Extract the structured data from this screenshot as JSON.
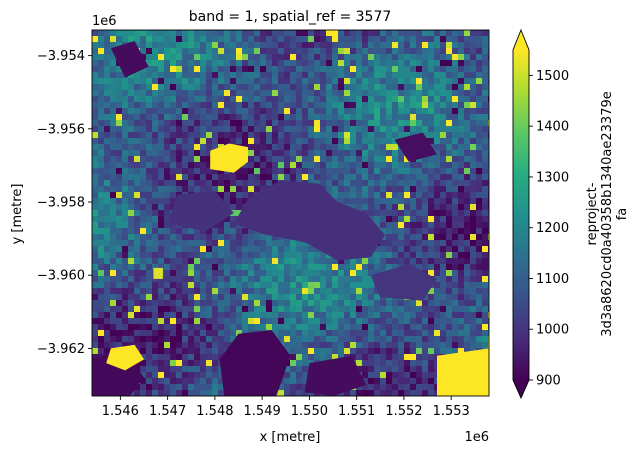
{
  "chart_data": {
    "type": "heatmap",
    "title": "band = 1, spatial_ref = 3577",
    "xlabel": "x [metre]",
    "ylabel": "y [metre]",
    "x_offset_label": "1e6",
    "y_offset_label": "1e6",
    "xlim": [
      1.5454,
      1.5538
    ],
    "ylim": [
      -3.9633,
      -3.9533
    ],
    "x_ticks": [
      1.546,
      1.547,
      1.548,
      1.549,
      1.55,
      1.551,
      1.552,
      1.553
    ],
    "y_ticks": [
      -3.954,
      -3.956,
      -3.958,
      -3.96,
      -3.962
    ],
    "x_tick_labels": [
      "1.546",
      "1.547",
      "1.548",
      "1.549",
      "1.550",
      "1.551",
      "1.552",
      "1.553"
    ],
    "y_tick_labels": [
      "−3.954",
      "−3.956",
      "−3.958",
      "−3.960",
      "−3.962"
    ],
    "colorbar": {
      "label_lines": [
        "reproject-",
        "3d3a8620cd0a40358b1340ae23379e",
        "fa"
      ],
      "vmin": 900,
      "vmax": 1550,
      "ticks": [
        900,
        1000,
        1100,
        1200,
        1300,
        1400,
        1500
      ],
      "tick_labels": [
        "900",
        "1000",
        "1100",
        "1200",
        "1300",
        "1400",
        "1500"
      ],
      "extend": "both",
      "colormap": "viridis"
    },
    "regions": [
      {
        "kind": "lake",
        "value": 990,
        "points": [
          [
            1.5487,
            -3.9579
          ],
          [
            1.5494,
            -3.9574
          ],
          [
            1.5502,
            -3.9575
          ],
          [
            1.5506,
            -3.958
          ],
          [
            1.5512,
            -3.9583
          ],
          [
            1.5516,
            -3.9589
          ],
          [
            1.5513,
            -3.9595
          ],
          [
            1.5506,
            -3.9596
          ],
          [
            1.5499,
            -3.9591
          ],
          [
            1.5491,
            -3.9589
          ],
          [
            1.5484,
            -3.9586
          ]
        ]
      },
      {
        "kind": "lake",
        "value": 995,
        "points": [
          [
            1.5472,
            -3.9578
          ],
          [
            1.548,
            -3.9577
          ],
          [
            1.5484,
            -3.9583
          ],
          [
            1.5478,
            -3.9588
          ],
          [
            1.547,
            -3.9586
          ]
        ]
      },
      {
        "kind": "lake",
        "value": 1000,
        "points": [
          [
            1.5513,
            -3.96
          ],
          [
            1.5521,
            -3.9597
          ],
          [
            1.5527,
            -3.9601
          ],
          [
            1.5524,
            -3.9607
          ],
          [
            1.5515,
            -3.9606
          ]
        ]
      },
      {
        "kind": "dark",
        "value": 910,
        "points": [
          [
            1.5485,
            -3.9616
          ],
          [
            1.5492,
            -3.9615
          ],
          [
            1.5496,
            -3.9622
          ],
          [
            1.5493,
            -3.9633
          ],
          [
            1.5482,
            -3.9633
          ],
          [
            1.5481,
            -3.9623
          ]
        ]
      },
      {
        "kind": "dark",
        "value": 915,
        "points": [
          [
            1.5454,
            -3.9623
          ],
          [
            1.5461,
            -3.962
          ],
          [
            1.5465,
            -3.9628
          ],
          [
            1.5462,
            -3.9633
          ],
          [
            1.5454,
            -3.9633
          ]
        ]
      },
      {
        "kind": "dark",
        "value": 920,
        "points": [
          [
            1.5458,
            -3.9538
          ],
          [
            1.5463,
            -3.9536
          ],
          [
            1.5466,
            -3.9543
          ],
          [
            1.5461,
            -3.9546
          ]
        ]
      },
      {
        "kind": "dark",
        "value": 920,
        "points": [
          [
            1.55,
            -3.9624
          ],
          [
            1.5509,
            -3.9622
          ],
          [
            1.5512,
            -3.963
          ],
          [
            1.5505,
            -3.9633
          ],
          [
            1.5499,
            -3.9632
          ]
        ]
      },
      {
        "kind": "dark",
        "value": 925,
        "points": [
          [
            1.5518,
            -3.9563
          ],
          [
            1.5524,
            -3.9561
          ],
          [
            1.5527,
            -3.9567
          ],
          [
            1.5521,
            -3.9569
          ]
        ]
      },
      {
        "kind": "bright",
        "value": 1560,
        "points": [
          [
            1.5479,
            -3.9566
          ],
          [
            1.5483,
            -3.9564
          ],
          [
            1.5487,
            -3.9565
          ],
          [
            1.5487,
            -3.9569
          ],
          [
            1.5484,
            -3.9572
          ],
          [
            1.5479,
            -3.9571
          ]
        ]
      },
      {
        "kind": "bright",
        "value": 1560,
        "points": [
          [
            1.5458,
            -3.962
          ],
          [
            1.5463,
            -3.9619
          ],
          [
            1.5465,
            -3.9623
          ],
          [
            1.5461,
            -3.9626
          ],
          [
            1.5457,
            -3.9624
          ]
        ]
      },
      {
        "kind": "bright",
        "value": 1560,
        "points": [
          [
            1.5527,
            -3.9622
          ],
          [
            1.5538,
            -3.962
          ],
          [
            1.5538,
            -3.9633
          ],
          [
            1.5527,
            -3.9633
          ]
        ]
      },
      {
        "kind": "bright",
        "value": 1520,
        "points": [
          [
            1.5467,
            -3.9598
          ],
          [
            1.5469,
            -3.9598
          ],
          [
            1.5469,
            -3.9601
          ],
          [
            1.5467,
            -3.9601
          ]
        ]
      }
    ]
  }
}
